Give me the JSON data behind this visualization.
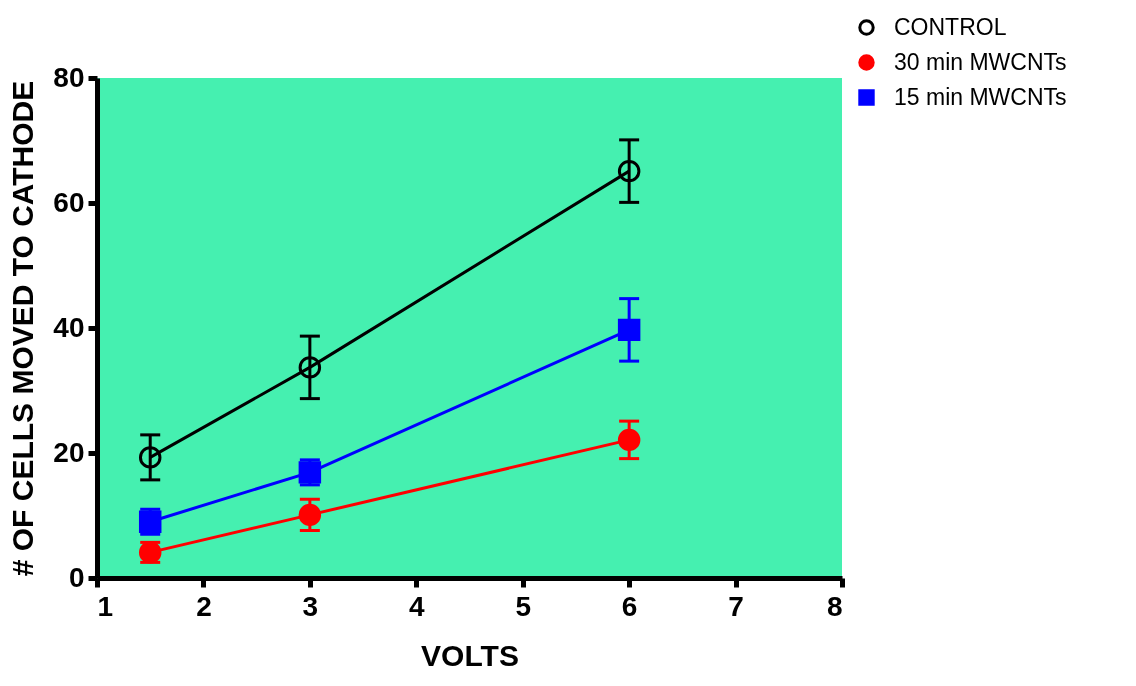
{
  "chart_data": {
    "type": "line",
    "xlabel": "VOLTS",
    "ylabel": "# OF CELLS MOVED TO CATHODE",
    "x": [
      1.5,
      3,
      6
    ],
    "xlim": [
      1,
      8
    ],
    "xticks": [
      {
        "value": 1,
        "label": "1"
      },
      {
        "value": 2,
        "label": "2"
      },
      {
        "value": 3,
        "label": "3"
      },
      {
        "value": 4,
        "label": "4"
      },
      {
        "value": 5,
        "label": "5"
      },
      {
        "value": 6,
        "label": "6"
      },
      {
        "value": 7,
        "label": "7"
      },
      {
        "value": 8,
        "label": "8"
      }
    ],
    "ylim": [
      0,
      80
    ],
    "yticks": [
      0,
      20,
      40,
      60,
      80
    ],
    "grid": false,
    "legend": "top right",
    "series": [
      {
        "name": "CONTROL",
        "color": "#000000",
        "marker": "circle",
        "values": [
          19.3,
          33.7,
          65.1
        ],
        "errors": [
          3.6,
          5,
          5
        ]
      },
      {
        "name": "30 min MWCNTs",
        "color": "#ff0000",
        "marker": "circle",
        "values": [
          4.1,
          10.1,
          22.1
        ],
        "errors": [
          1.6,
          2.5,
          3
        ]
      },
      {
        "name": "15 min MWCNTs",
        "color": "#0000ff",
        "marker": "square",
        "values": [
          9.0,
          16.9,
          39.7
        ],
        "errors": [
          2,
          2,
          5
        ]
      }
    ]
  }
}
